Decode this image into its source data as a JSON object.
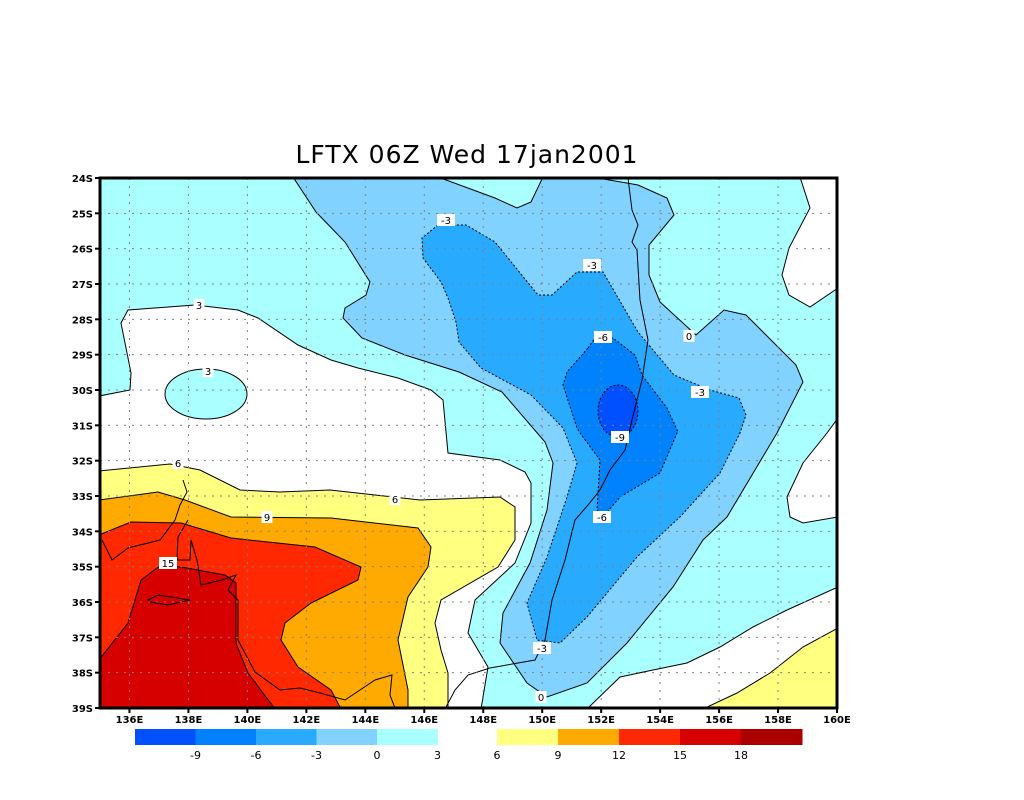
{
  "title": "LFTX 06Z Wed 17jan2001",
  "map": {
    "variable": "LFTX",
    "lon_range": [
      135,
      160
    ],
    "lat_range": [
      -39,
      -24
    ],
    "x_ticks": [
      "136E",
      "138E",
      "140E",
      "142E",
      "144E",
      "146E",
      "148E",
      "150E",
      "152E",
      "154E",
      "156E",
      "158E",
      "160E"
    ],
    "y_ticks": [
      "24S",
      "25S",
      "26S",
      "27S",
      "28S",
      "29S",
      "30S",
      "31S",
      "32S",
      "33S",
      "34S",
      "35S",
      "36S",
      "37S",
      "38S",
      "39S"
    ],
    "grid": true,
    "contour_labels": [
      "-3",
      "-3",
      "-6",
      "0",
      "-3",
      "-9",
      "-6",
      "-3",
      "0",
      "3",
      "3",
      "6",
      "6",
      "9",
      "15"
    ]
  },
  "colorbar": {
    "cold_colors": [
      "#0050ff",
      "#0082ff",
      "#28aaff",
      "#82d2ff",
      "#aaffff"
    ],
    "warm_colors": [
      "#ffff80",
      "#ffaa00",
      "#ff2800",
      "#d70000",
      "#aa0000"
    ],
    "cold_labels": [
      "-9",
      "-6",
      "-3",
      "0",
      "3"
    ],
    "warm_labels": [
      "6",
      "9",
      "12",
      "15",
      "18"
    ]
  },
  "colors": {
    "lt0": "#aaffff",
    "white": "#ffffff"
  }
}
